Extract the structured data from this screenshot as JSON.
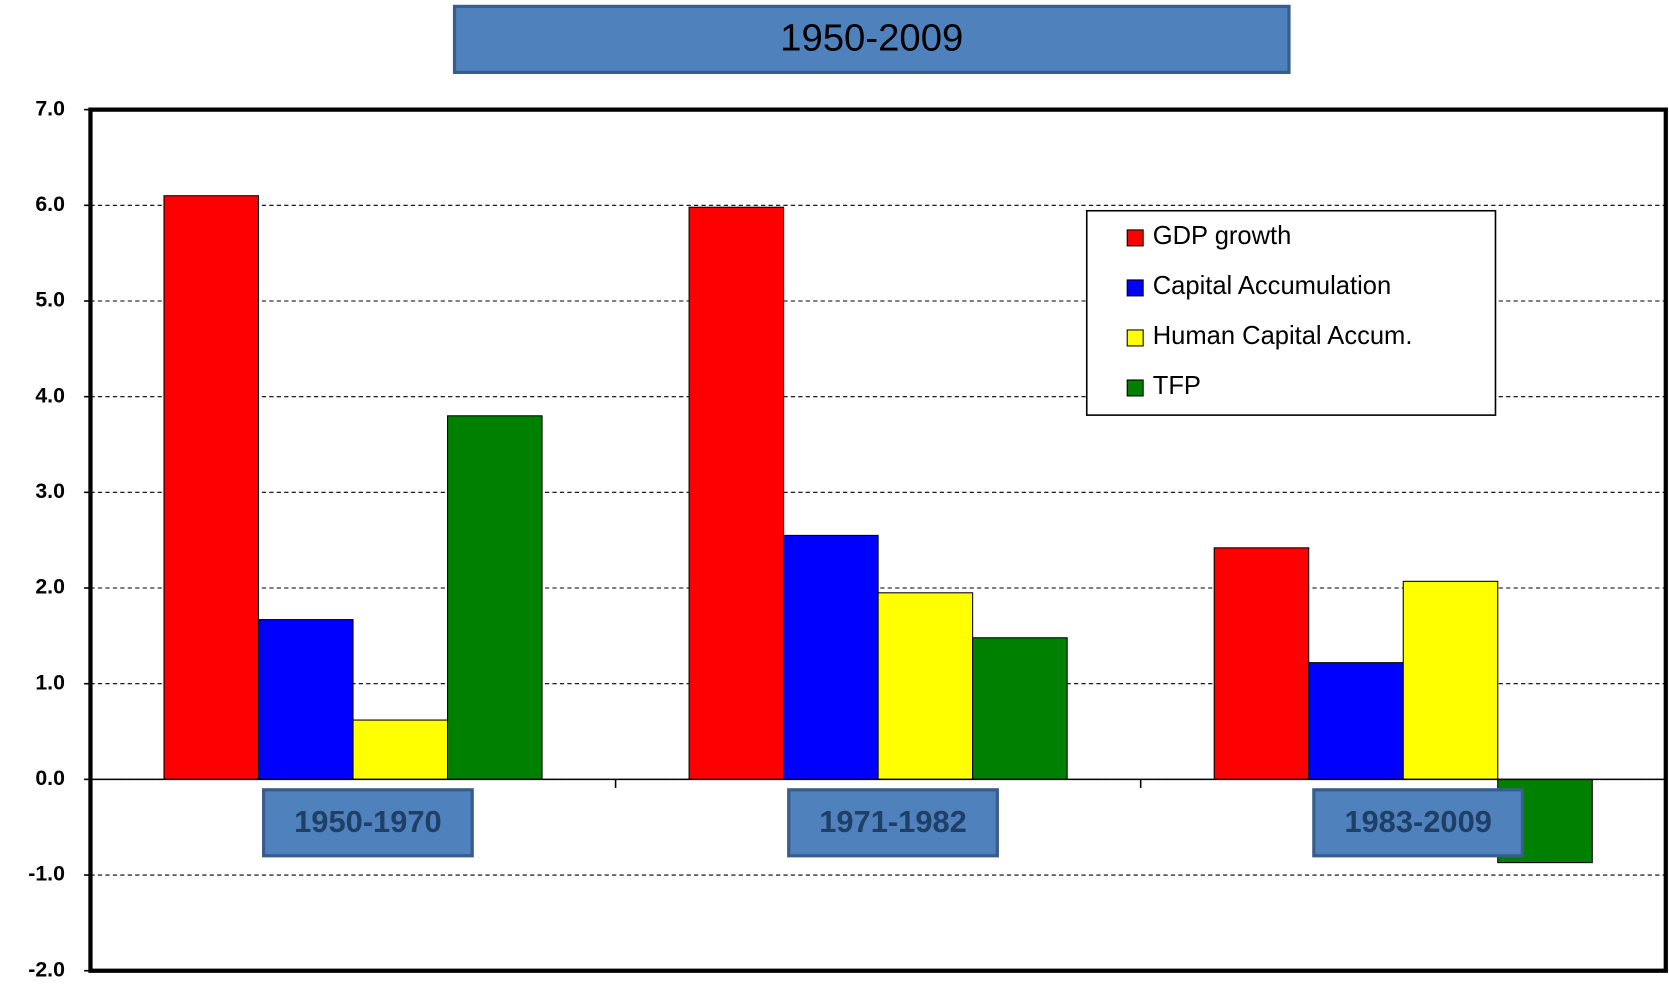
{
  "chart_data": {
    "type": "bar",
    "title": "1950-2009",
    "categories": [
      "1950-1970",
      "1971-1982",
      "1983-2009"
    ],
    "series": [
      {
        "name": "GDP growth",
        "color": "#ff0000",
        "values": [
          6.1,
          5.98,
          2.42
        ]
      },
      {
        "name": "Capital Accumulation",
        "color": "#0000ff",
        "values": [
          1.67,
          2.55,
          1.22
        ]
      },
      {
        "name": "Human Capital Accum.",
        "color": "#ffff00",
        "values": [
          0.62,
          1.95,
          2.07
        ]
      },
      {
        "name": "TFP",
        "color": "#008000",
        "values": [
          3.8,
          1.48,
          -0.87
        ]
      }
    ],
    "ylim": [
      -2,
      7
    ],
    "yticks": [
      {
        "value": -2,
        "label": "-2.0"
      },
      {
        "value": -1,
        "label": "-1.0"
      },
      {
        "value": 0,
        "label": "0.0"
      },
      {
        "value": 1,
        "label": "1.0"
      },
      {
        "value": 2,
        "label": "2.0"
      },
      {
        "value": 3,
        "label": "3.0"
      },
      {
        "value": 4,
        "label": "4.0"
      },
      {
        "value": 5,
        "label": "5.0"
      },
      {
        "value": 6,
        "label": "6.0"
      },
      {
        "value": 7,
        "label": "7.0"
      }
    ],
    "grid": true,
    "legend": "upper right"
  }
}
